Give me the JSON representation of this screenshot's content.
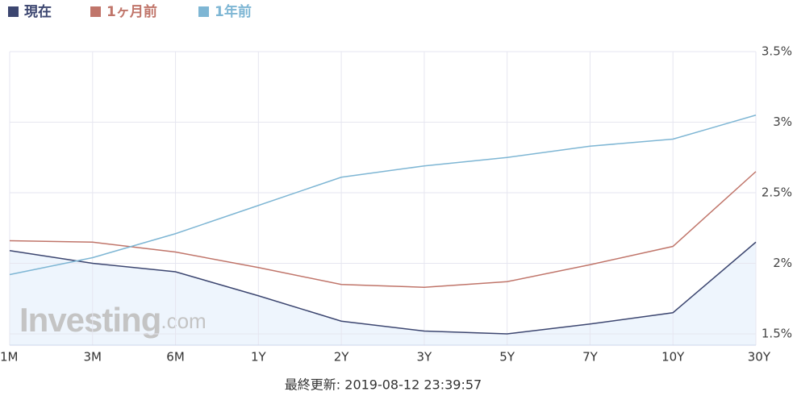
{
  "chart_data": {
    "type": "line",
    "categories": [
      "1M",
      "3M",
      "6M",
      "1Y",
      "2Y",
      "3Y",
      "5Y",
      "7Y",
      "10Y",
      "30Y"
    ],
    "series": [
      {
        "name": "現在",
        "color": "#3c4670",
        "area_color": "#eef5fd",
        "values": [
          2.09,
          2.0,
          1.94,
          1.77,
          1.59,
          1.52,
          1.5,
          1.57,
          1.65,
          2.15
        ]
      },
      {
        "name": "1ヶ月前",
        "color": "#c0756a",
        "values": [
          2.16,
          2.15,
          2.08,
          1.97,
          1.85,
          1.83,
          1.87,
          1.99,
          2.12,
          2.65
        ]
      },
      {
        "name": "1年前",
        "color": "#7eb6d4",
        "values": [
          1.92,
          2.04,
          2.21,
          2.41,
          2.61,
          2.69,
          2.75,
          2.83,
          2.88,
          3.05
        ]
      }
    ],
    "ylim": [
      1.42,
      3.5
    ],
    "yticks": [
      {
        "value": 1.5,
        "label": "1.5%"
      },
      {
        "value": 2,
        "label": "2%"
      },
      {
        "value": 2.5,
        "label": "2.5%"
      },
      {
        "value": 3,
        "label": "3%"
      },
      {
        "value": 3.5,
        "label": "3.5%"
      }
    ],
    "grid": true,
    "legend": "top-left",
    "watermark": [
      "Investing",
      ".com"
    ],
    "footer": "最終更新: 2019-08-12 23:39:57"
  }
}
